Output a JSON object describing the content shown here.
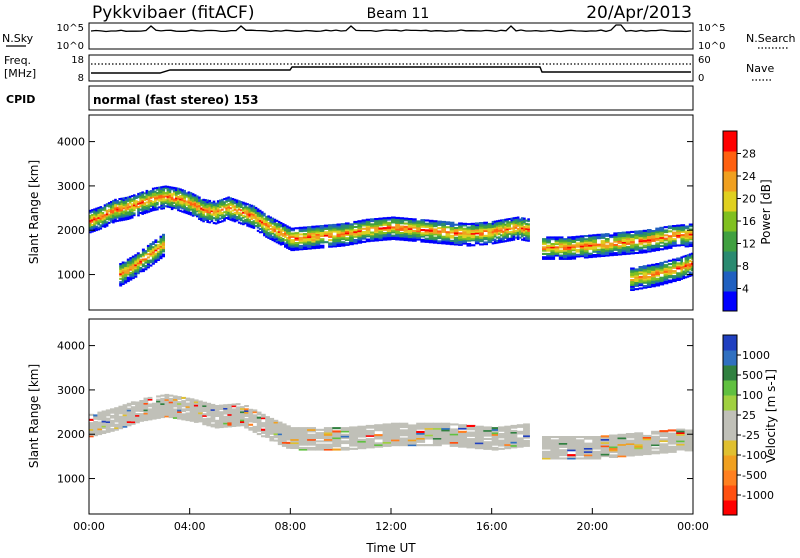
{
  "header": {
    "title": "Pykkvibaer (fitACF)",
    "beam": "Beam 11",
    "date": "20/Apr/2013"
  },
  "strip_sky": {
    "left_label": "N.Sky",
    "right_label": "N.Search",
    "left_ticks": [
      "10^5",
      "10^0"
    ],
    "right_ticks": [
      "10^5",
      "10^0"
    ]
  },
  "strip_freq": {
    "left_label_1": "Freq.",
    "left_label_2": "[MHz]",
    "right_label": "Nave",
    "left_ticks": [
      "18",
      "8"
    ],
    "right_ticks": [
      "60",
      "0"
    ]
  },
  "cpid": {
    "label": "CPID",
    "text": "normal (fast stereo) 153"
  },
  "chart_data": [
    {
      "type": "heatmap",
      "name": "power",
      "ylabel": "Slant Range [km]",
      "ylim": [
        200,
        4600
      ],
      "yticks": [
        "1000",
        "2000",
        "3000",
        "4000"
      ],
      "xlim": [
        0,
        24
      ],
      "colorbar_label": "Power [dB]",
      "colorbar_ticks": [
        "4",
        "8",
        "12",
        "16",
        "20",
        "24",
        "28"
      ],
      "colors": [
        "#0000ff",
        "#2060c0",
        "#2a8a70",
        "#40a040",
        "#80c020",
        "#e0d020",
        "#f0a020",
        "#ff6010",
        "#ff0000"
      ],
      "bands": [
        {
          "x": [
            0.0,
            0.5,
            1.0,
            1.5,
            2.0,
            2.5,
            3.0,
            3.5,
            4.0,
            4.5,
            5.0,
            5.5,
            6.0,
            6.5,
            7.0,
            7.5,
            8.0,
            9.0,
            10.0,
            11.0,
            12.0,
            13.0,
            14.0,
            15.0,
            16.0,
            16.5,
            17.0,
            17.5
          ],
          "y": [
            2200,
            2300,
            2450,
            2500,
            2600,
            2700,
            2750,
            2700,
            2600,
            2450,
            2400,
            2500,
            2400,
            2300,
            2100,
            1950,
            1800,
            1850,
            1900,
            2000,
            2050,
            2000,
            1950,
            1900,
            1950,
            2000,
            2050,
            2000
          ]
        },
        {
          "x": [
            18.0,
            19.0,
            20.0,
            21.0,
            22.0,
            23.0,
            24.0
          ],
          "y": [
            1600,
            1600,
            1650,
            1700,
            1750,
            1850,
            1900
          ]
        },
        {
          "x": [
            1.2,
            1.8,
            2.4,
            3.0
          ],
          "y": [
            1000,
            1200,
            1450,
            1700
          ]
        },
        {
          "x": [
            21.5,
            22.5,
            23.5,
            24.0
          ],
          "y": [
            900,
            1000,
            1150,
            1250
          ]
        }
      ]
    },
    {
      "type": "heatmap",
      "name": "velocity",
      "ylabel": "Slant Range [km]",
      "ylim": [
        200,
        4600
      ],
      "yticks": [
        "1000",
        "2000",
        "3000",
        "4000"
      ],
      "xlim": [
        0,
        24
      ],
      "xticks": [
        "00:00",
        "04:00",
        "08:00",
        "12:00",
        "16:00",
        "20:00",
        "00:00"
      ],
      "xlabel": "Time UT",
      "colorbar_label": "Velocity [m s-1]",
      "colorbar_ticks": [
        "1000",
        "500",
        "100",
        "25",
        "-25",
        "-100",
        "-500",
        "-1000"
      ],
      "colors": [
        "#2040c0",
        "#3070c0",
        "#308040",
        "#60c040",
        "#a0d040",
        "#c0c0b8",
        "#c0c0b8",
        "#e0c030",
        "#f0a020",
        "#ff8020",
        "#ff5010",
        "#ff0000"
      ],
      "bands": [
        {
          "x": [
            0.0,
            1.0,
            2.0,
            3.0,
            4.0,
            5.0,
            6.0,
            7.0,
            8.0,
            10.0,
            12.0,
            14.0,
            16.0,
            17.5
          ],
          "y": [
            2200,
            2350,
            2550,
            2650,
            2550,
            2400,
            2450,
            2150,
            1900,
            1900,
            2000,
            2000,
            1900,
            2000
          ]
        },
        {
          "x": [
            18.0,
            20.0,
            22.0,
            24.0
          ],
          "y": [
            1700,
            1700,
            1800,
            1900
          ]
        }
      ]
    }
  ]
}
